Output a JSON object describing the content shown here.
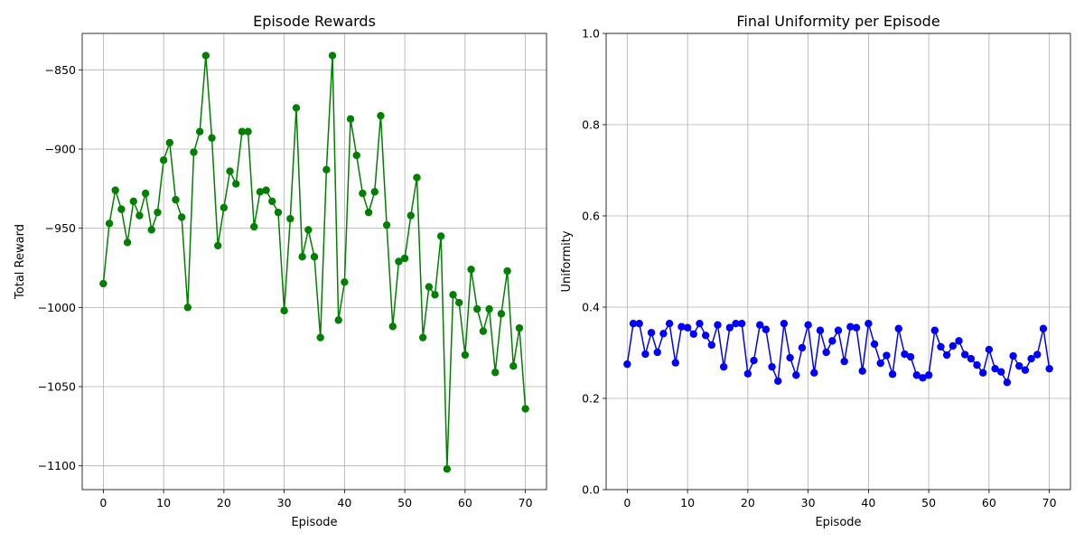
{
  "chart_data": [
    {
      "type": "line",
      "title": "Episode Rewards",
      "xlabel": "Episode",
      "ylabel": "Total Reward",
      "xlim": [
        -3.5,
        73.5
      ],
      "ylim": [
        -1115,
        -827
      ],
      "xticks": [
        0,
        10,
        20,
        30,
        40,
        50,
        60,
        70
      ],
      "yticks": [
        -850,
        -900,
        -950,
        -1000,
        -1050,
        -1100
      ],
      "xtick_labels": [
        "0",
        "10",
        "20",
        "30",
        "40",
        "50",
        "60",
        "70"
      ],
      "ytick_labels": [
        "−850",
        "−900",
        "−950",
        "−1000",
        "−1050",
        "−1100"
      ],
      "grid": true,
      "color": "#008000",
      "series": [
        {
          "x": [
            0,
            1,
            2,
            3,
            4,
            5,
            6,
            7,
            8,
            9,
            10,
            11,
            12,
            13,
            14,
            15,
            16,
            17,
            18,
            19,
            20,
            21,
            22,
            23,
            24,
            25,
            26,
            27,
            28,
            29,
            30,
            31,
            32,
            33,
            34,
            35,
            36,
            37,
            38,
            39,
            40,
            41,
            42,
            43,
            44,
            45,
            46,
            47,
            48,
            49,
            50,
            51,
            52,
            53,
            54,
            55,
            56,
            57,
            58,
            59,
            60,
            61,
            62,
            63,
            64,
            65,
            66,
            67,
            68,
            69,
            70
          ],
          "values": [
            -985,
            -947,
            -926,
            -938,
            -959,
            -933,
            -942,
            -928,
            -951,
            -940,
            -907,
            -896,
            -932,
            -943,
            -1000,
            -902,
            -889,
            -841,
            -893,
            -961,
            -937,
            -914,
            -922,
            -889,
            -889,
            -949,
            -927,
            -926,
            -933,
            -940,
            -1002,
            -944,
            -874,
            -968,
            -951,
            -968,
            -1019,
            -913,
            -841,
            -1008,
            -984,
            -881,
            -904,
            -928,
            -940,
            -927,
            -879,
            -948,
            -1012,
            -971,
            -969,
            -942,
            -918,
            -1019,
            -987,
            -992,
            -955,
            -1102,
            -992,
            -997,
            -1030,
            -976,
            -1001,
            -1015,
            -1001,
            -1041,
            -1004,
            -977,
            -1037,
            -1013,
            -1064
          ]
        }
      ]
    },
    {
      "type": "line",
      "title": "Final Uniformity per Episode",
      "xlabel": "Episode",
      "ylabel": "Uniformity",
      "xlim": [
        -3.5,
        73.5
      ],
      "ylim": [
        0,
        1
      ],
      "xticks": [
        0,
        10,
        20,
        30,
        40,
        50,
        60,
        70
      ],
      "yticks": [
        0.0,
        0.2,
        0.4,
        0.6,
        0.8,
        1.0
      ],
      "xtick_labels": [
        "0",
        "10",
        "20",
        "30",
        "40",
        "50",
        "60",
        "70"
      ],
      "ytick_labels": [
        "0.0",
        "0.2",
        "0.4",
        "0.6",
        "0.8",
        "1.0"
      ],
      "grid": true,
      "color": "#0000ff",
      "series": [
        {
          "x": [
            0,
            1,
            2,
            3,
            4,
            5,
            6,
            7,
            8,
            9,
            10,
            11,
            12,
            13,
            14,
            15,
            16,
            17,
            18,
            19,
            20,
            21,
            22,
            23,
            24,
            25,
            26,
            27,
            28,
            29,
            30,
            31,
            32,
            33,
            34,
            35,
            36,
            37,
            38,
            39,
            40,
            41,
            42,
            43,
            44,
            45,
            46,
            47,
            48,
            49,
            50,
            51,
            52,
            53,
            54,
            55,
            56,
            57,
            58,
            59,
            60,
            61,
            62,
            63,
            64,
            65,
            66,
            67,
            68,
            69,
            70
          ],
          "values": [
            0.275,
            0.364,
            0.364,
            0.297,
            0.344,
            0.301,
            0.342,
            0.364,
            0.278,
            0.357,
            0.355,
            0.341,
            0.364,
            0.338,
            0.317,
            0.361,
            0.269,
            0.355,
            0.364,
            0.364,
            0.254,
            0.283,
            0.361,
            0.351,
            0.269,
            0.238,
            0.364,
            0.289,
            0.251,
            0.311,
            0.361,
            0.256,
            0.349,
            0.301,
            0.326,
            0.349,
            0.281,
            0.357,
            0.355,
            0.26,
            0.364,
            0.319,
            0.277,
            0.294,
            0.253,
            0.353,
            0.297,
            0.291,
            0.251,
            0.245,
            0.251,
            0.349,
            0.313,
            0.295,
            0.315,
            0.326,
            0.296,
            0.287,
            0.273,
            0.256,
            0.307,
            0.265,
            0.258,
            0.235,
            0.293,
            0.271,
            0.262,
            0.287,
            0.296,
            0.353,
            0.265
          ]
        }
      ]
    }
  ]
}
